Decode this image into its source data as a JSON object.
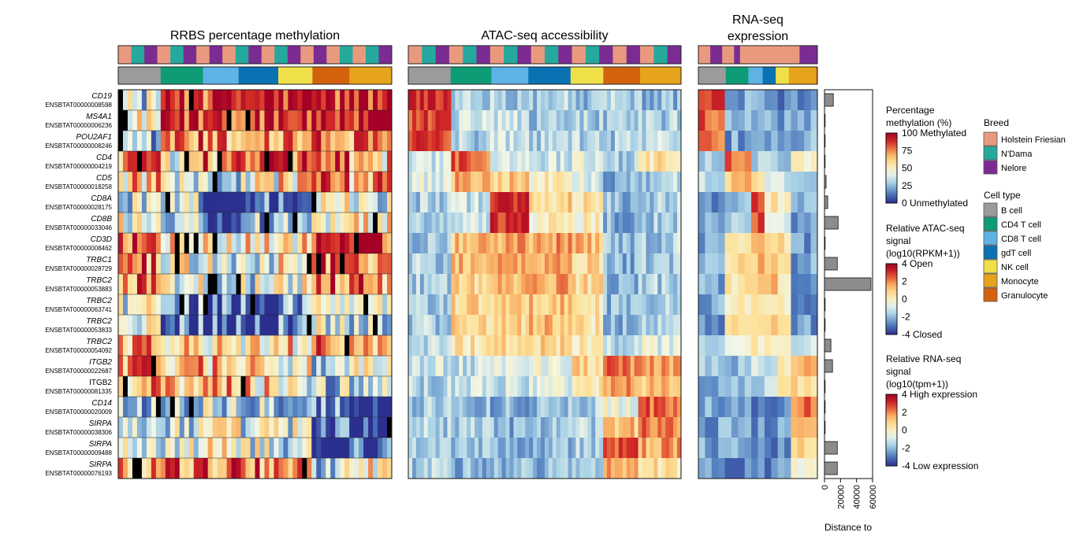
{
  "chart_data": {
    "type": "heatmap",
    "panels": [
      {
        "id": "rrbs",
        "title": [
          "RRBS percentage methylation"
        ],
        "kind": "methylation",
        "columns": 58
      },
      {
        "id": "atac",
        "title": [
          "ATAC-seq accessibility"
        ],
        "kind": "diverging",
        "columns": 70
      },
      {
        "id": "rna",
        "title": [
          "RNA-seq",
          "expression"
        ],
        "kind": "diverging",
        "columns": 18
      }
    ],
    "rows": [
      {
        "gene": "CD19",
        "ensembl": "ENSBTAT00000008598",
        "italic": true,
        "distance": 11000
      },
      {
        "gene": "MS4A1",
        "ensembl": "ENSBTAT00000006236",
        "italic": true,
        "distance": 0
      },
      {
        "gene": "POU2AF1",
        "ensembl": "ENSBTAT00000008246",
        "italic": true,
        "distance": 0
      },
      {
        "gene": "CD4",
        "ensembl": "ENSBTAT00000004219",
        "italic": true,
        "distance": 0
      },
      {
        "gene": "CD5",
        "ensembl": "ENSBTAT00000018258",
        "italic": true,
        "distance": 2000
      },
      {
        "gene": "CD8A",
        "ensembl": "ENSBTAT00000028175",
        "italic": true,
        "distance": 4000
      },
      {
        "gene": "CD8B",
        "ensembl": "ENSBTAT00000033046",
        "italic": true,
        "distance": 17000
      },
      {
        "gene": "CD3D",
        "ensembl": "ENSBTAT00000008462",
        "italic": true,
        "distance": 0
      },
      {
        "gene": "TRBC1",
        "ensembl": "ENSBTAT00000028729",
        "italic": true,
        "distance": 16000
      },
      {
        "gene": "TRBC2",
        "ensembl": "ENSBTAT00000053883",
        "italic": true,
        "distance": 58000
      },
      {
        "gene": "TRBC2",
        "ensembl": "ENSBTAT00000063741",
        "italic": true,
        "distance": 0
      },
      {
        "gene": "TRBC2",
        "ensembl": "ENSBTAT00000053833",
        "italic": true,
        "distance": 0
      },
      {
        "gene": "TRBC2",
        "ensembl": "ENSBTAT00000054092",
        "italic": true,
        "distance": 8000
      },
      {
        "gene": "ITGB2",
        "ensembl": "ENSBTAT00000022687",
        "italic": true,
        "distance": 10000
      },
      {
        "gene": "ITGB2",
        "ensembl": "ENSBTAT00000081335",
        "italic": false,
        "distance": 0
      },
      {
        "gene": "CD14",
        "ensembl": "ENSBTAT00000020009",
        "italic": true,
        "distance": 0
      },
      {
        "gene": "SIRPA",
        "ensembl": "ENSBTAT00000038306",
        "italic": true,
        "distance": 0
      },
      {
        "gene": "SIRPA",
        "ensembl": "ENSBTAT00000009488",
        "italic": true,
        "distance": 16000
      },
      {
        "gene": "SIRPA",
        "ensembl": "ENSBTAT00000076193",
        "italic": true,
        "distance": 16000
      }
    ],
    "distance_axis": {
      "ticks": [
        0,
        20000,
        40000,
        60000
      ],
      "range": [
        0,
        60000
      ],
      "label": "Distance to"
    },
    "breeds": [
      {
        "name": "Holstein Friesian",
        "color": "#E99A7E"
      },
      {
        "name": "N'Dama",
        "color": "#25A99D"
      },
      {
        "name": "Nelore",
        "color": "#7B2C93"
      }
    ],
    "cell_types": [
      {
        "name": "B cell",
        "color": "#9B9B9B"
      },
      {
        "name": "CD4 T cell",
        "color": "#0E9C77"
      },
      {
        "name": "CD8 T cell",
        "color": "#5DB3E6"
      },
      {
        "name": "gdT cell",
        "color": "#0A72B2"
      },
      {
        "name": "NK cell",
        "color": "#EFE04A"
      },
      {
        "name": "Monocyte",
        "color": "#E6A31C"
      },
      {
        "name": "Granulocyte",
        "color": "#D3620F"
      }
    ],
    "legend_titles": {
      "breed": "Breed",
      "cell_type": "Cell type"
    },
    "methylation_scale": {
      "title": [
        "Percentage",
        "methylation (%)"
      ],
      "ticks": [
        {
          "value": 100,
          "label": "100 Methylated"
        },
        {
          "value": 75,
          "label": "75"
        },
        {
          "value": 50,
          "label": "50"
        },
        {
          "value": 25,
          "label": "25"
        },
        {
          "value": 0,
          "label": "0 Unmethylated"
        }
      ]
    },
    "atac_scale": {
      "title": [
        "Relative ATAC-seq",
        "signal",
        "(log10(RPKM+1))"
      ],
      "ticks": [
        {
          "value": 4,
          "label": "4 Open"
        },
        {
          "value": 2,
          "label": "2"
        },
        {
          "value": 0,
          "label": "0"
        },
        {
          "value": -2,
          "label": "-2"
        },
        {
          "value": -4,
          "label": "-4 Closed"
        }
      ]
    },
    "rna_scale": {
      "title": [
        "Relative RNA-seq",
        "signal",
        "(log10(tpm+1))"
      ],
      "ticks": [
        {
          "value": 4,
          "label": "4 High expression"
        },
        {
          "value": 2,
          "label": "2"
        },
        {
          "value": 0,
          "label": "0"
        },
        {
          "value": -2,
          "label": "-2"
        },
        {
          "value": -4,
          "label": "-4 Low expression"
        }
      ]
    },
    "colors": {
      "diverging": [
        "#2B2F8E",
        "#4F7DBE",
        "#A8D1E6",
        "#F2F7E8",
        "#FDE39B",
        "#F7A65C",
        "#D73027",
        "#A50026"
      ],
      "missing": "#000000"
    }
  }
}
